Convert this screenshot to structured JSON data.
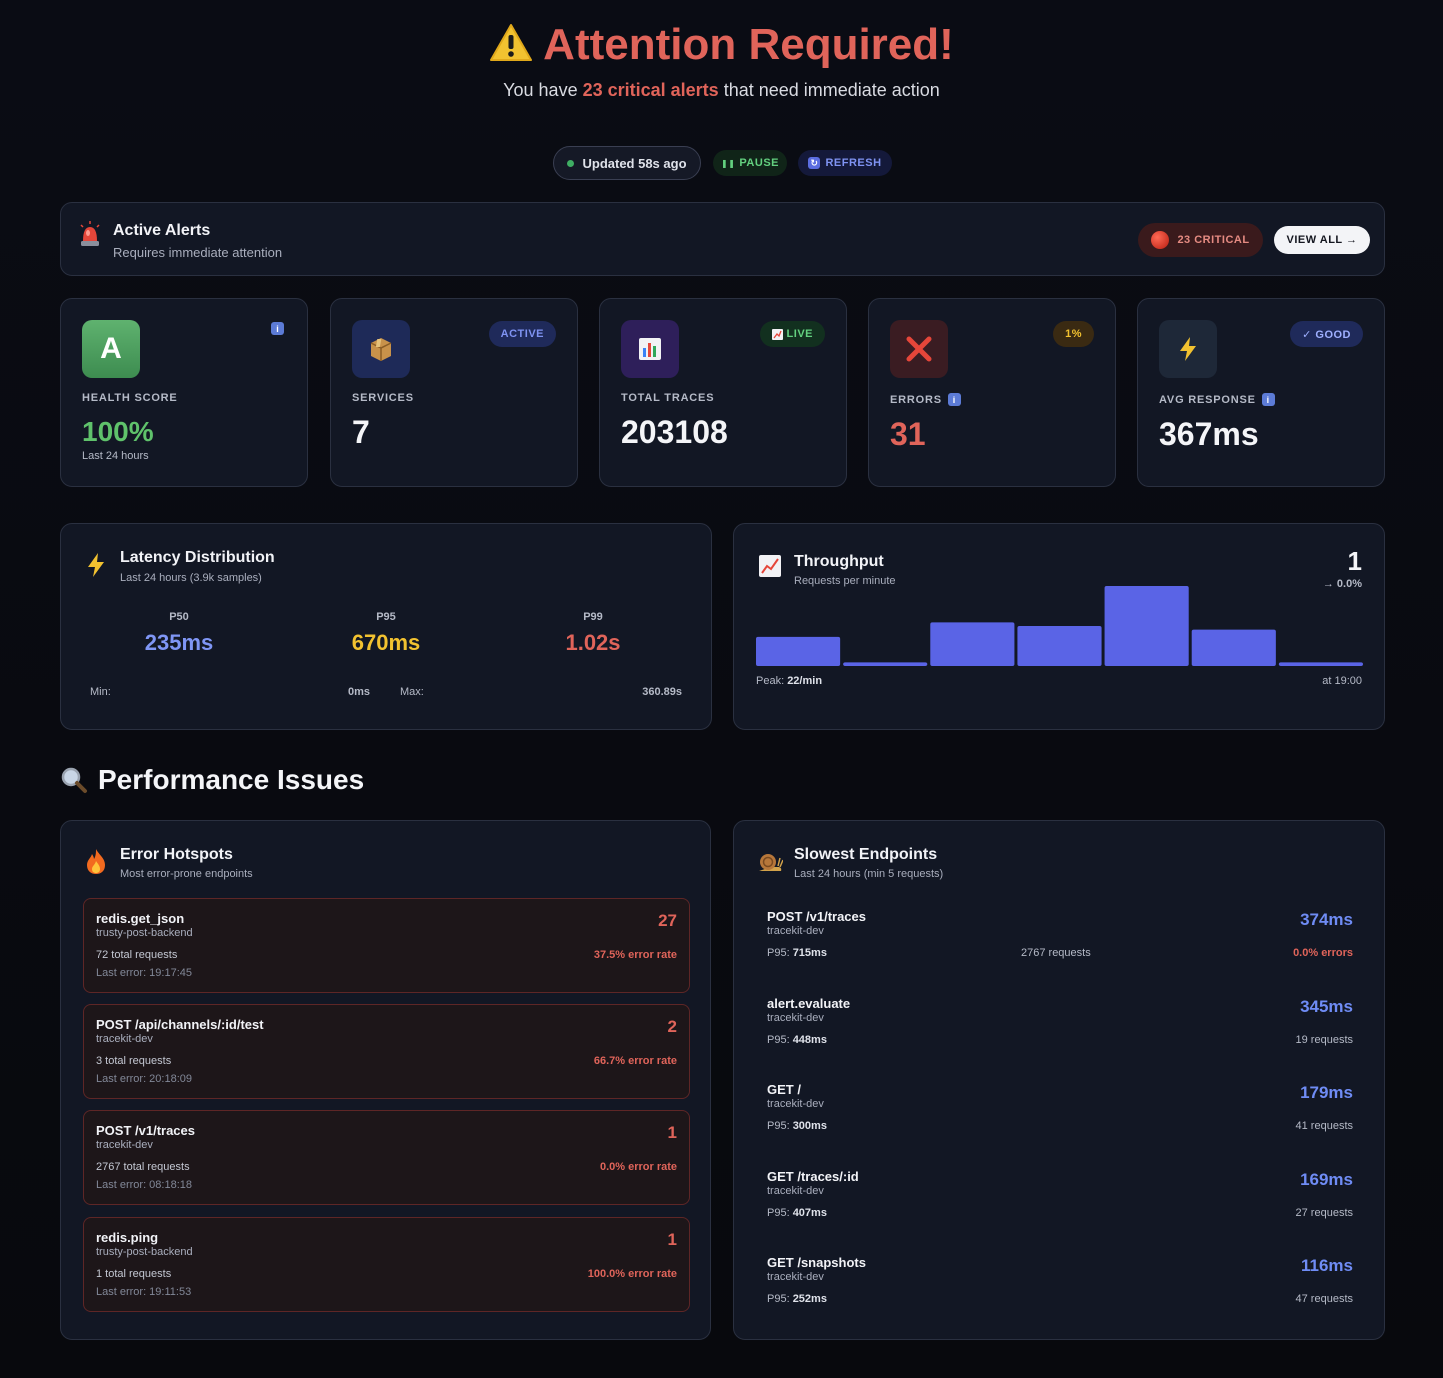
{
  "header": {
    "title": "Attention Required!",
    "sub_prefix": "You have ",
    "sub_highlight": "23 critical alerts",
    "sub_suffix": " that need immediate action",
    "updated": "Updated 58s ago",
    "pause": "PAUSE",
    "refresh": "REFRESH"
  },
  "alerts": {
    "title": "Active Alerts",
    "subtitle": "Requires immediate attention",
    "critical": "23 CRITICAL",
    "view_all": "VIEW ALL →"
  },
  "stats": {
    "health": {
      "letter": "A",
      "label": "HEALTH SCORE",
      "value": "100%",
      "foot": "Last 24 hours"
    },
    "services": {
      "label": "SERVICES",
      "value": "7",
      "badge": "ACTIVE"
    },
    "traces": {
      "label": "TOTAL TRACES",
      "value": "203108",
      "badge": "LIVE"
    },
    "errors": {
      "label": "ERRORS",
      "value": "31",
      "badge": "1%"
    },
    "response": {
      "label": "AVG RESPONSE",
      "value": "367ms",
      "badge": "✓ GOOD"
    }
  },
  "latency": {
    "title": "Latency Distribution",
    "subtitle": "Last 24 hours (3.9k samples)",
    "p50_label": "P50",
    "p50": "235ms",
    "p95_label": "P95",
    "p95": "670ms",
    "p99_label": "P99",
    "p99": "1.02s",
    "min_label": "Min:",
    "min": "0ms",
    "max_label": "Max:",
    "max": "360.89s"
  },
  "throughput": {
    "title": "Throughput",
    "subtitle": "Requests per minute",
    "value": "1",
    "trend": "→ 0.0%",
    "peak_label": "Peak: ",
    "peak": "22/min",
    "peak_time": "at 19:00"
  },
  "chart_data": {
    "type": "bar",
    "values": [
      8,
      1,
      12,
      11,
      22,
      10,
      1
    ],
    "ylim": [
      0,
      22
    ],
    "color": "#5a64e6"
  },
  "performance": {
    "title": "Performance Issues"
  },
  "hotspots": {
    "title": "Error Hotspots",
    "subtitle": "Most error-prone endpoints",
    "items": [
      {
        "name": "redis.get_json",
        "service": "trusty-post-backend",
        "requests": "72 total requests",
        "last_error": "Last error: 19:17:45",
        "count": "27",
        "rate": "37.5% error rate"
      },
      {
        "name": "POST /api/channels/:id/test",
        "service": "tracekit-dev",
        "requests": "3 total requests",
        "last_error": "Last error: 20:18:09",
        "count": "2",
        "rate": "66.7% error rate"
      },
      {
        "name": "POST /v1/traces",
        "service": "tracekit-dev",
        "requests": "2767 total requests",
        "last_error": "Last error: 08:18:18",
        "count": "1",
        "rate": "0.0% error rate"
      },
      {
        "name": "redis.ping",
        "service": "trusty-post-backend",
        "requests": "1 total requests",
        "last_error": "Last error: 19:11:53",
        "count": "1",
        "rate": "100.0% error rate"
      }
    ]
  },
  "slowest": {
    "title": "Slowest Endpoints",
    "subtitle": "Last 24 hours (min 5 requests)",
    "p95_label": "P95: ",
    "items": [
      {
        "name": "POST /v1/traces",
        "service": "tracekit-dev",
        "p95": "715ms",
        "ms": "374ms",
        "middle": "2767 requests",
        "right": "0.0% errors"
      },
      {
        "name": "alert.evaluate",
        "service": "tracekit-dev",
        "p95": "448ms",
        "ms": "345ms",
        "right": "19 requests"
      },
      {
        "name": "GET /",
        "service": "tracekit-dev",
        "p95": "300ms",
        "ms": "179ms",
        "right": "41 requests"
      },
      {
        "name": "GET /traces/:id",
        "service": "tracekit-dev",
        "p95": "407ms",
        "ms": "169ms",
        "right": "27 requests"
      },
      {
        "name": "GET /snapshots",
        "service": "tracekit-dev",
        "p95": "252ms",
        "ms": "116ms",
        "right": "47 requests"
      }
    ]
  }
}
